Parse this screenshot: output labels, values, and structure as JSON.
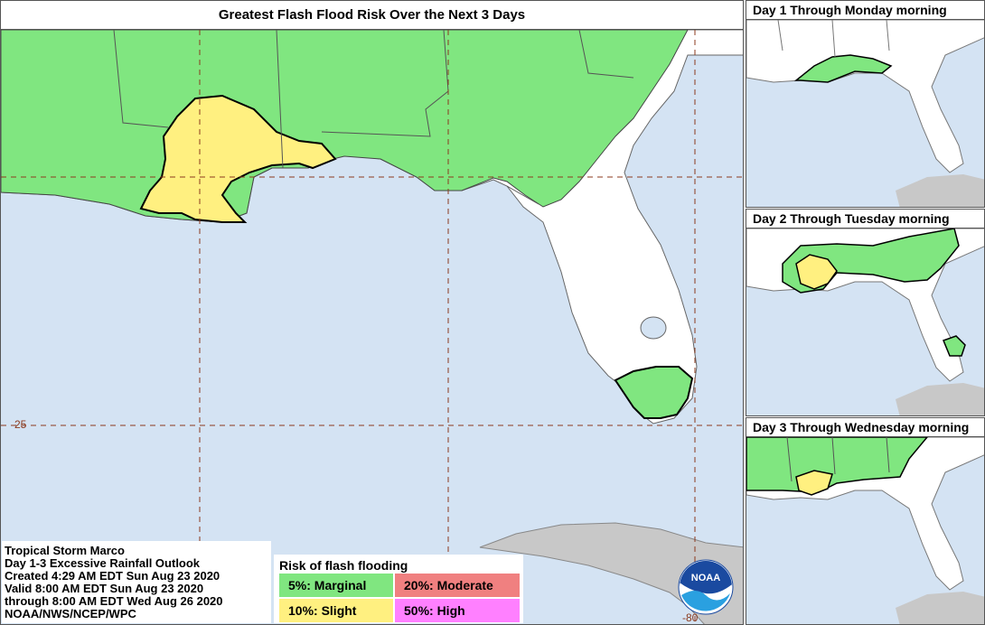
{
  "main_map": {
    "title": "Greatest Flash Flood Risk Over the Next 3 Days",
    "lat_label": "25",
    "lon_label": "-80"
  },
  "insets": [
    {
      "title": "Day 1 Through Monday morning"
    },
    {
      "title": "Day 2 Through Tuesday morning"
    },
    {
      "title": "Day 3 Through Wednesday morning"
    }
  ],
  "info": {
    "lines": [
      "Tropical Storm Marco",
      "Day 1-3 Excessive Rainfall Outlook",
      "Created 4:29 AM EDT Sun Aug 23 2020",
      "Valid 8:00 AM EDT Sun Aug 23 2020",
      "through 8:00 AM EDT Wed Aug 26 2020",
      "NOAA/NWS/NCEP/WPC"
    ]
  },
  "legend": {
    "title": "Risk of flash flooding",
    "items": [
      {
        "label": "5%: Marginal",
        "color": "#80e680"
      },
      {
        "label": "20%: Moderate",
        "color": "#f08080"
      },
      {
        "label": "10%: Slight",
        "color": "#fff080"
      },
      {
        "label": "50%: High",
        "color": "#ff80ff"
      }
    ]
  },
  "logo": {
    "text": "NOAA"
  },
  "colors": {
    "water": "#d4e3f3",
    "land": "#ffffff",
    "marginal": "#80e680",
    "slight": "#fff080",
    "cuba": "#c8c8c8",
    "grid": "#8b3a1e"
  }
}
